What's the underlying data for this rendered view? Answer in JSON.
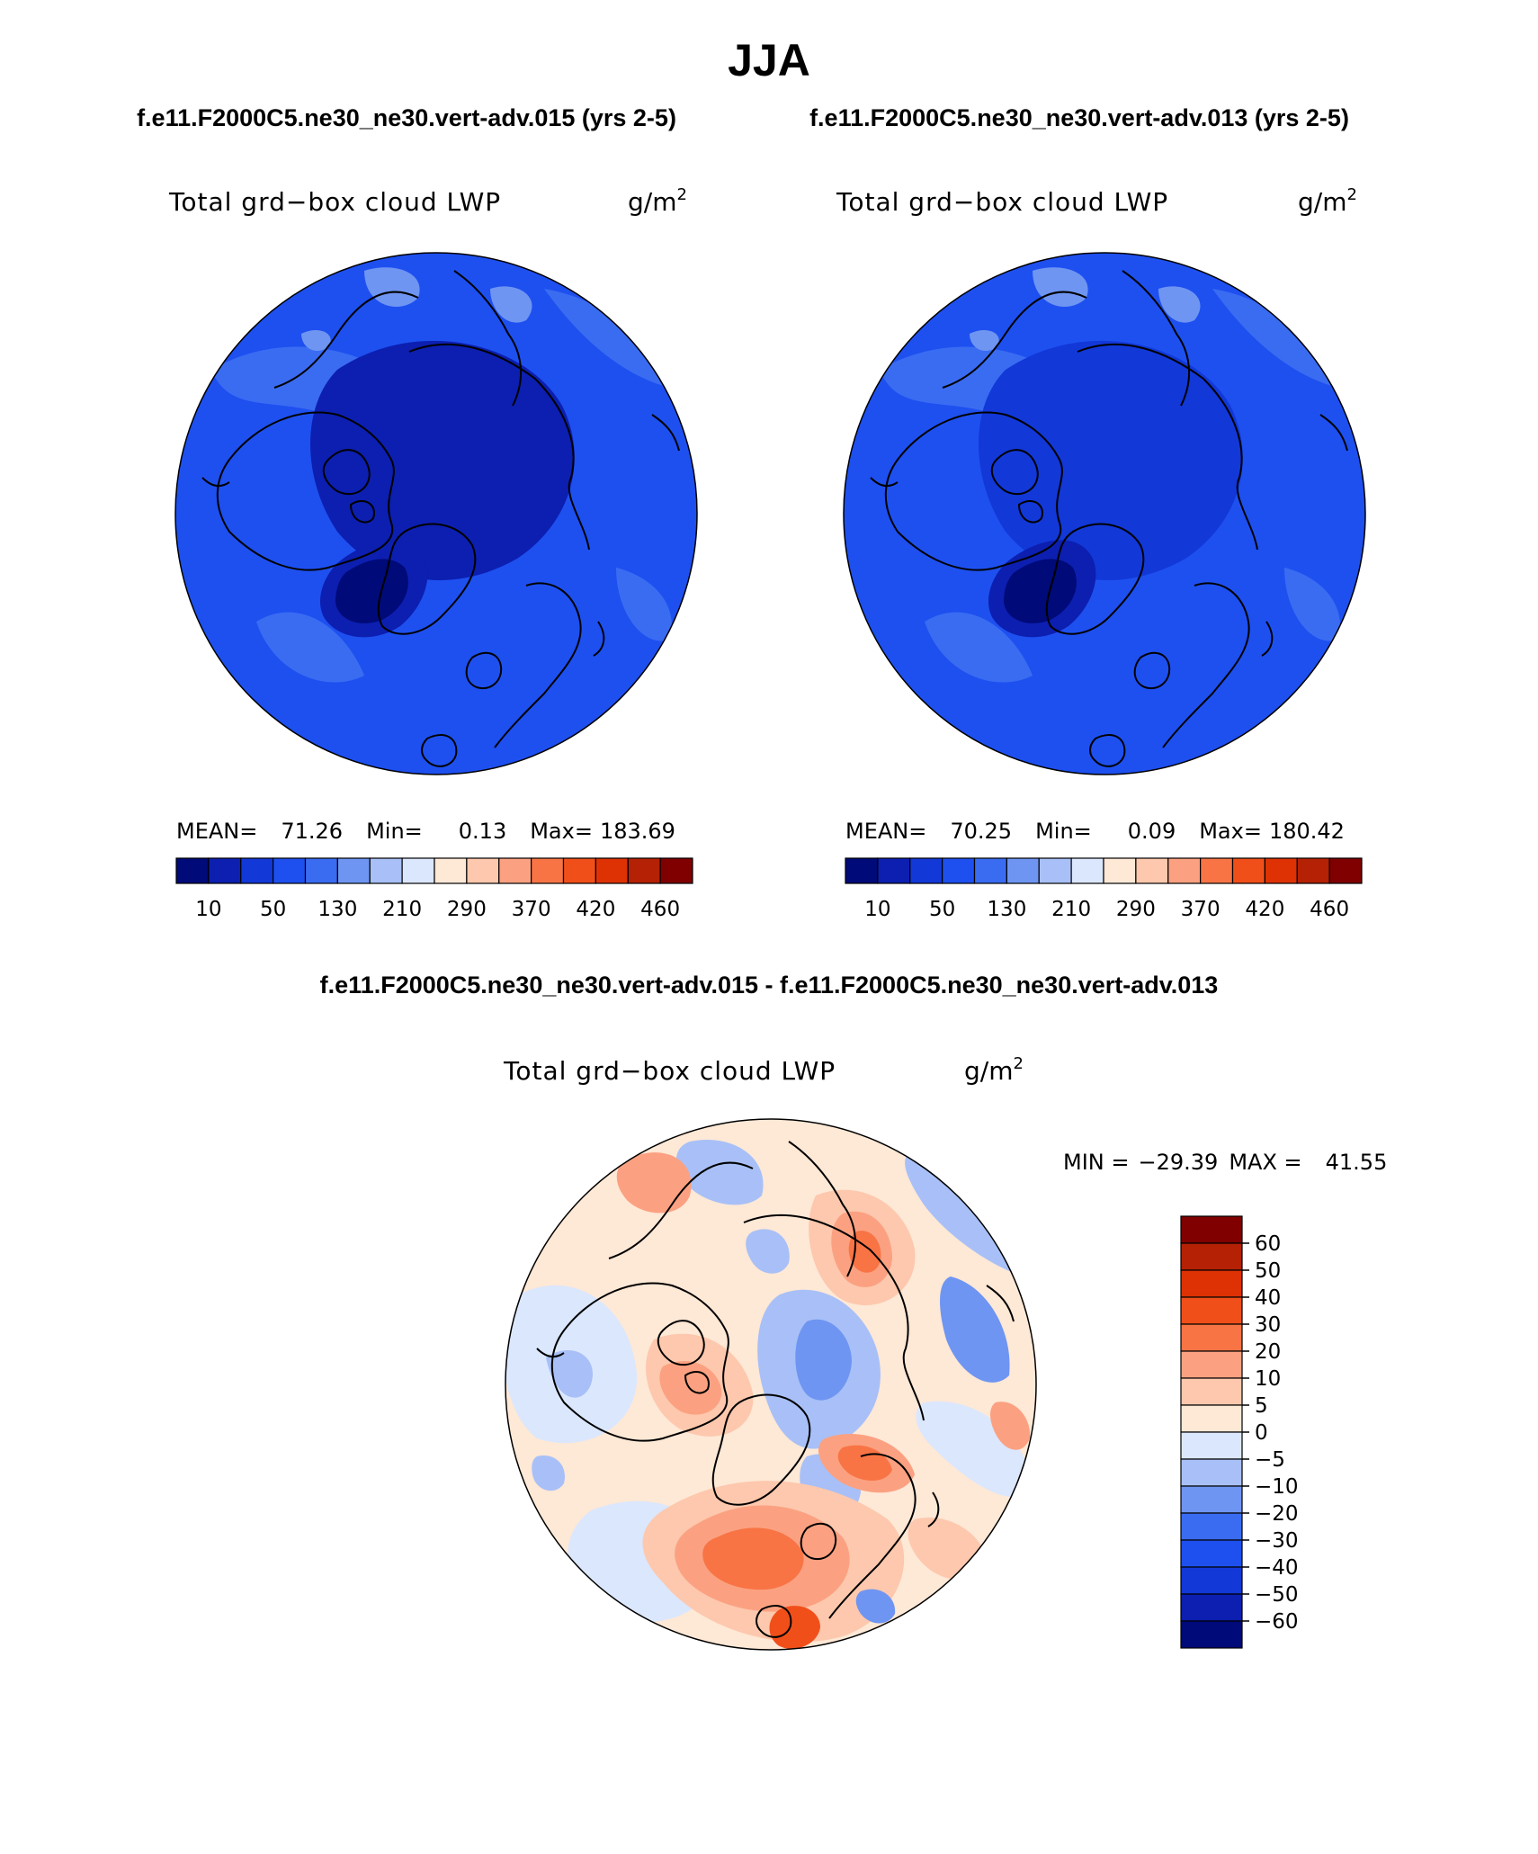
{
  "title": "JJA",
  "colors": {
    "main_scale": [
      "#000a78",
      "#0c1fb0",
      "#1238d8",
      "#1e50f0",
      "#3a6cf2",
      "#6f95f2",
      "#a8c0f7",
      "#dbe7fd",
      "#fee8d6",
      "#fdc8ad",
      "#fba181",
      "#f87445",
      "#f14f1a",
      "#de3205",
      "#b52104",
      "#800000"
    ],
    "diff_scale": [
      "#000a78",
      "#0c1fb0",
      "#1238d8",
      "#1e50f0",
      "#3a6cf2",
      "#6f95f2",
      "#a8c0f7",
      "#dbe7fd",
      "#fee8d6",
      "#fdc8ad",
      "#fba181",
      "#f87445",
      "#f14f1a",
      "#de3205",
      "#b52104",
      "#800000"
    ],
    "coast": "#000000"
  },
  "panels": [
    {
      "case_title": "f.e11.F2000C5.ne30_ne30.vert-adv.015 (yrs 2-5)",
      "var_label": "Total grd−box cloud LWP",
      "units": "g/m",
      "units_sup": "2",
      "stats": {
        "mean_label": "MEAN=",
        "mean": "71.26",
        "min_label": "Min=",
        "min": "0.13",
        "max_label": "Max=",
        "max": "183.69"
      },
      "colorbar_ticks": [
        "10",
        "50",
        "130",
        "210",
        "290",
        "370",
        "420",
        "460"
      ],
      "field": {
        "background_level": 3,
        "ocean_level": 3,
        "arctic_level": 1,
        "greenland_level": 0
      }
    },
    {
      "case_title": "f.e11.F2000C5.ne30_ne30.vert-adv.013 (yrs 2-5)",
      "var_label": "Total grd−box cloud LWP",
      "units": "g/m",
      "units_sup": "2",
      "stats": {
        "mean_label": "MEAN=",
        "mean": "70.25",
        "min_label": "Min=",
        "min": "0.09",
        "max_label": "Max=",
        "max": "180.42"
      },
      "colorbar_ticks": [
        "10",
        "50",
        "130",
        "210",
        "290",
        "370",
        "420",
        "460"
      ],
      "field": {
        "background_level": 3,
        "ocean_level": 3,
        "arctic_level": 2,
        "greenland_level": 0
      }
    }
  ],
  "difference": {
    "title": "f.e11.F2000C5.ne30_ne30.vert-adv.015 - f.e11.F2000C5.ne30_ne30.vert-adv.013",
    "var_label": "Total grd−box cloud LWP",
    "units": "g/m",
    "units_sup": "2",
    "stats": {
      "min_label": "MIN =",
      "min": "−29.39",
      "max_label": "MAX =",
      "max": "41.55"
    },
    "colorbar_ticks": [
      "60",
      "50",
      "40",
      "30",
      "20",
      "10",
      "5",
      "0",
      "−5",
      "−10",
      "−20",
      "−30",
      "−40",
      "−50",
      "−60"
    ]
  },
  "chart_data": {
    "type": "heatmap",
    "title": "JJA",
    "projection": "north polar stereographic",
    "season": "JJA",
    "variable": "Total grd−box cloud LWP",
    "units": "g/m2",
    "panels": [
      {
        "case": "f.e11.F2000C5.ne30_ne30.vert-adv.015 (yrs 2-5)",
        "mean": 71.26,
        "min": 0.13,
        "max": 183.69,
        "levels": [
          10,
          50,
          130,
          210,
          290,
          370,
          420,
          460
        ]
      },
      {
        "case": "f.e11.F2000C5.ne30_ne30.vert-adv.013 (yrs 2-5)",
        "mean": 70.25,
        "min": 0.09,
        "max": 180.42,
        "levels": [
          10,
          50,
          130,
          210,
          290,
          370,
          420,
          460
        ]
      },
      {
        "case": "f.e11.F2000C5.ne30_ne30.vert-adv.015 - f.e11.F2000C5.ne30_ne30.vert-adv.013",
        "min": -29.39,
        "max": 41.55,
        "levels": [
          -60,
          -50,
          -40,
          -30,
          -20,
          -10,
          -5,
          0,
          5,
          10,
          20,
          30,
          40,
          50,
          60
        ]
      }
    ]
  }
}
